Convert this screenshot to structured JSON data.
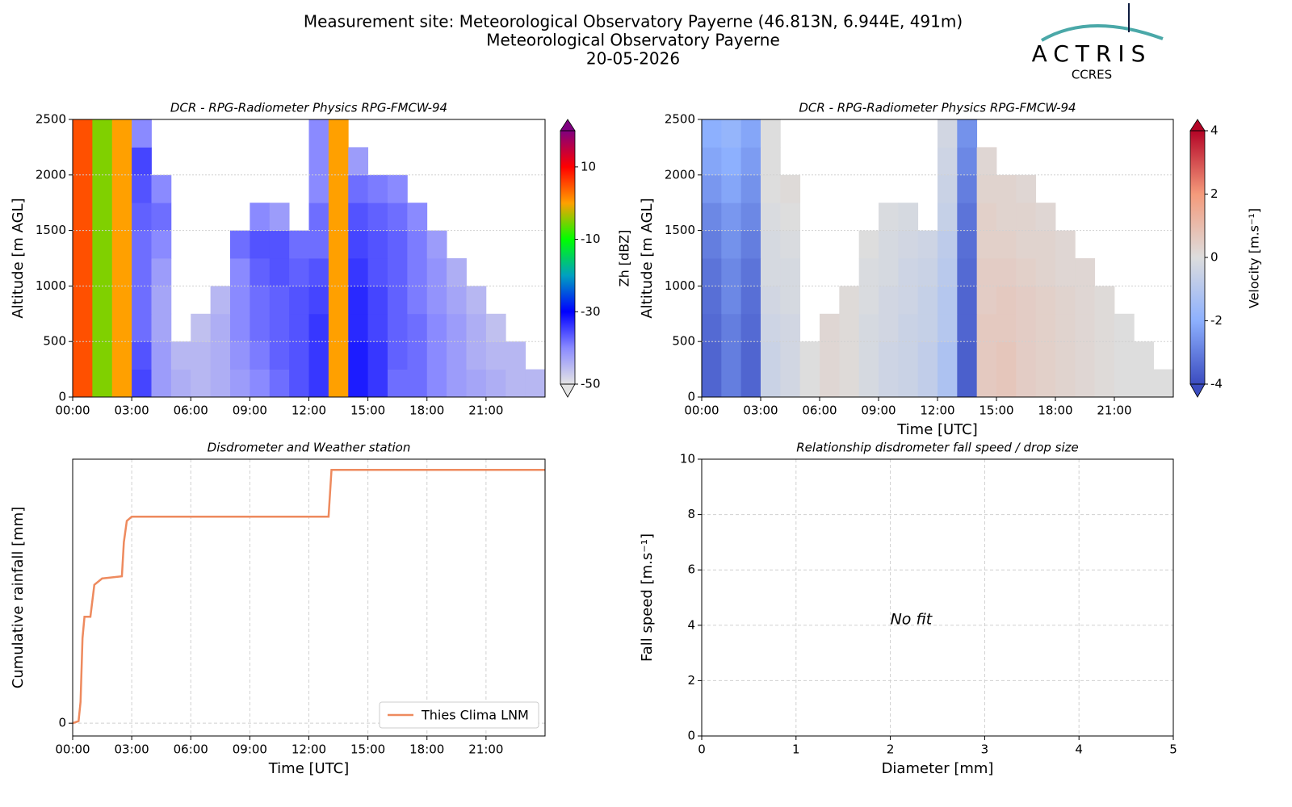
{
  "header": {
    "title": "Measurement site: Meteorological Observatory Payerne (46.813N, 6.944E, 491m)",
    "subtitle": "Meteorological Observatory Payerne",
    "date": "20-05-2026",
    "logo": "ACTRIS",
    "logo_sub": "CCRES"
  },
  "chart_data": [
    {
      "type": "heatmap",
      "title": "DCR - RPG-Radiometer Physics RPG-FMCW-94",
      "ylabel": "Altitude [m AGL]",
      "x_edges": [
        0,
        1,
        2,
        3,
        4,
        5,
        6,
        7,
        8,
        9,
        10,
        11,
        12,
        13,
        14,
        15,
        16,
        17,
        18,
        19,
        20,
        21,
        22,
        23,
        24
      ],
      "y_edges": [
        0,
        250,
        500,
        750,
        1000,
        1250,
        1500,
        1750,
        2000,
        2250,
        2500
      ],
      "z": [
        [
          5,
          -5,
          0,
          -35,
          -42,
          -44,
          -45,
          -44,
          -42,
          -40,
          -38,
          -36,
          -34,
          0,
          -32,
          -34,
          -38,
          -38,
          -40,
          -42,
          -43,
          -44,
          -45,
          -45
        ],
        [
          5,
          -5,
          0,
          -36,
          -42,
          -45,
          -45,
          -44,
          -41,
          -39,
          -37,
          -36,
          -34,
          0,
          -32,
          -34,
          -37,
          -38,
          -40,
          -42,
          -44,
          -45,
          -45,
          null
        ],
        [
          5,
          -5,
          0,
          -38,
          -43,
          null,
          -46,
          -44,
          -40,
          -38,
          -37,
          -36,
          -34,
          0,
          -33,
          -35,
          -37,
          -38,
          -40,
          -42,
          -44,
          -46,
          null,
          null
        ],
        [
          5,
          -5,
          0,
          -38,
          -43,
          null,
          null,
          -45,
          -40,
          -38,
          -37,
          -36,
          -35,
          0,
          -33,
          -35,
          -37,
          -39,
          -41,
          -43,
          -45,
          null,
          null,
          null
        ],
        [
          5,
          -5,
          0,
          -38,
          -42,
          null,
          null,
          null,
          -40,
          -37,
          -36,
          -37,
          -36,
          0,
          -34,
          -36,
          -37,
          -39,
          -41,
          -44,
          null,
          null,
          null,
          null
        ],
        [
          5,
          -5,
          0,
          -38,
          -40,
          null,
          null,
          null,
          -38,
          -36,
          -36,
          -38,
          -38,
          0,
          -35,
          -36,
          -37,
          -39,
          -42,
          null,
          null,
          null,
          null,
          null
        ],
        [
          5,
          -5,
          0,
          -37,
          -38,
          null,
          null,
          null,
          null,
          -40,
          -42,
          null,
          -38,
          0,
          -36,
          -37,
          -38,
          -40,
          null,
          null,
          null,
          null,
          null,
          null
        ],
        [
          5,
          -5,
          0,
          -36,
          -40,
          null,
          null,
          null,
          null,
          null,
          null,
          null,
          -40,
          0,
          -38,
          -39,
          -40,
          null,
          null,
          null,
          null,
          null,
          null,
          null
        ],
        [
          5,
          -5,
          0,
          -35,
          null,
          null,
          null,
          null,
          null,
          null,
          null,
          null,
          -40,
          0,
          -42,
          null,
          null,
          null,
          null,
          null,
          null,
          null,
          null,
          null
        ],
        [
          5,
          -5,
          0,
          -40,
          null,
          null,
          null,
          null,
          null,
          null,
          null,
          null,
          -40,
          0,
          null,
          null,
          null,
          null,
          null,
          null,
          null,
          null,
          null,
          null
        ]
      ],
      "xlim": [
        0,
        24
      ],
      "xticks": [
        {
          "value": 0,
          "label": "00:00"
        },
        {
          "value": 3,
          "label": "03:00"
        },
        {
          "value": 6,
          "label": "06:00"
        },
        {
          "value": 9,
          "label": "09:00"
        },
        {
          "value": 12,
          "label": "12:00"
        },
        {
          "value": 15,
          "label": "15:00"
        },
        {
          "value": 18,
          "label": "18:00"
        },
        {
          "value": 21,
          "label": "21:00"
        }
      ],
      "ylim": [
        0,
        2500
      ],
      "yticks": [
        0,
        500,
        1000,
        1500,
        2000,
        2500
      ],
      "grid": true,
      "colorbar": {
        "label": "Zh [dBZ]",
        "lim": [
          -50,
          20
        ],
        "ticks": [
          10,
          -10,
          -30,
          -50
        ],
        "colors": [
          "#e4e4e4",
          "#8a8aff",
          "#0000ff",
          "#00a0c0",
          "#00ff00",
          "#ffa000",
          "#ff0000",
          "#800080"
        ]
      }
    },
    {
      "type": "heatmap",
      "title": "DCR - RPG-Radiometer Physics RPG-FMCW-94",
      "ylabel": "Altitude [m AGL]",
      "xlabel": "Time [UTC]",
      "x_edges": [
        0,
        1,
        2,
        3,
        4,
        5,
        6,
        7,
        8,
        9,
        10,
        11,
        12,
        13,
        14,
        15,
        16,
        17,
        18,
        19,
        20,
        21,
        22,
        23,
        24
      ],
      "y_edges": [
        0,
        250,
        500,
        750,
        1000,
        1250,
        1500,
        1750,
        2000,
        2250,
        2500
      ],
      "z": [
        [
          -3.5,
          -3,
          -3.5,
          -0.5,
          -0.3,
          0,
          0.2,
          0.1,
          -0.2,
          -0.4,
          -0.5,
          -0.7,
          -1.2,
          -3.6,
          0.6,
          0.7,
          0.5,
          0.4,
          0.3,
          0.2,
          0.1,
          0,
          0,
          0
        ],
        [
          -3.5,
          -3,
          -3.5,
          -0.5,
          -0.3,
          0,
          0.2,
          0.1,
          -0.2,
          -0.4,
          -0.5,
          -0.7,
          -1.2,
          -3.6,
          0.6,
          0.7,
          0.5,
          0.4,
          0.3,
          0.2,
          0.1,
          0,
          0,
          null
        ],
        [
          -3.4,
          -3,
          -3.4,
          -0.4,
          -0.3,
          null,
          0.2,
          0.1,
          -0.2,
          -0.3,
          -0.5,
          -0.6,
          -1,
          -3.5,
          0.6,
          0.6,
          0.5,
          0.4,
          0.3,
          0.2,
          0.1,
          0,
          null,
          null
        ],
        [
          -3.3,
          -2.8,
          -3.3,
          -0.3,
          -0.2,
          null,
          null,
          0.1,
          -0.1,
          -0.3,
          -0.4,
          -0.6,
          -1,
          -3.5,
          0.5,
          0.6,
          0.5,
          0.4,
          0.3,
          0.2,
          0.1,
          null,
          null,
          null
        ],
        [
          -3.2,
          -2.8,
          -3.2,
          -0.2,
          -0.2,
          null,
          null,
          null,
          -0.1,
          -0.2,
          -0.4,
          -0.5,
          -0.9,
          -3.4,
          0.5,
          0.5,
          0.4,
          0.3,
          0.2,
          0.2,
          null,
          null,
          null,
          null
        ],
        [
          -3,
          -2.6,
          -3,
          -0.2,
          -0.1,
          null,
          null,
          null,
          0,
          -0.2,
          -0.3,
          -0.4,
          -0.8,
          -3.3,
          0.4,
          0.4,
          0.3,
          0.3,
          0.2,
          null,
          null,
          null,
          null,
          null
        ],
        [
          -2.8,
          -2.5,
          -2.8,
          -0.1,
          0,
          null,
          null,
          null,
          null,
          -0.1,
          -0.2,
          null,
          -0.6,
          -3.2,
          0.4,
          0.3,
          0.3,
          0.2,
          null,
          null,
          null,
          null,
          null,
          null
        ],
        [
          -2.5,
          -2.2,
          -2.6,
          0,
          0.1,
          null,
          null,
          null,
          null,
          null,
          null,
          null,
          -0.5,
          -3,
          0.3,
          0.3,
          0.2,
          null,
          null,
          null,
          null,
          null,
          null,
          null
        ],
        [
          -2.2,
          -2,
          -2.4,
          0,
          null,
          null,
          null,
          null,
          null,
          null,
          null,
          null,
          -0.4,
          -2.8,
          0.2,
          null,
          null,
          null,
          null,
          null,
          null,
          null,
          null,
          null
        ],
        [
          -2,
          -1.8,
          -2.2,
          0,
          null,
          null,
          null,
          null,
          null,
          null,
          null,
          null,
          -0.3,
          -2.6,
          null,
          null,
          null,
          null,
          null,
          null,
          null,
          null,
          null,
          null
        ]
      ],
      "xlim": [
        0,
        24
      ],
      "xticks": [
        {
          "value": 0,
          "label": "00:00"
        },
        {
          "value": 3,
          "label": "03:00"
        },
        {
          "value": 6,
          "label": "06:00"
        },
        {
          "value": 9,
          "label": "09:00"
        },
        {
          "value": 12,
          "label": "12:00"
        },
        {
          "value": 15,
          "label": "15:00"
        },
        {
          "value": 18,
          "label": "18:00"
        },
        {
          "value": 21,
          "label": "21:00"
        }
      ],
      "ylim": [
        0,
        2500
      ],
      "yticks": [
        0,
        500,
        1000,
        1500,
        2000,
        2500
      ],
      "grid": true,
      "colorbar": {
        "label": "Velocity [m.s⁻¹]",
        "lim": [
          -4,
          4
        ],
        "ticks": [
          4,
          2,
          0,
          -2,
          -4
        ],
        "colors": [
          "#3b4cc0",
          "#8db0fe",
          "#dddddd",
          "#f49a7b",
          "#b40426"
        ]
      }
    },
    {
      "type": "line",
      "title": "Disdrometer and Weather station",
      "xlabel": "Time [UTC]",
      "ylabel": "Cumulative rainfall [mm]",
      "x": [
        0,
        0.3,
        0.4,
        0.5,
        0.6,
        0.9,
        1.1,
        1.5,
        2.5,
        2.6,
        2.75,
        3,
        13,
        13.15,
        24
      ],
      "series": [
        {
          "name": "Thies Clima LNM",
          "color": "#ee8a5e",
          "values": [
            0,
            0.01,
            0.1,
            0.4,
            0.5,
            0.5,
            0.65,
            0.68,
            0.69,
            0.85,
            0.95,
            0.97,
            0.97,
            1.19,
            1.19
          ]
        }
      ],
      "xlim": [
        0,
        24
      ],
      "xticks": [
        {
          "value": 0,
          "label": "00:00"
        },
        {
          "value": 3,
          "label": "03:00"
        },
        {
          "value": 6,
          "label": "06:00"
        },
        {
          "value": 9,
          "label": "09:00"
        },
        {
          "value": 12,
          "label": "12:00"
        },
        {
          "value": 15,
          "label": "15:00"
        },
        {
          "value": 18,
          "label": "18:00"
        },
        {
          "value": 21,
          "label": "21:00"
        }
      ],
      "ylim": [
        -0.06,
        1.24
      ],
      "yticks": [
        0
      ],
      "grid": true,
      "legend": "lower right"
    },
    {
      "type": "scatter",
      "title": "Relationship disdrometer fall speed / drop size",
      "xlabel": "Diameter [mm]",
      "ylabel": "Fall speed [m.s⁻¹]",
      "annotation": "No fit",
      "xlim": [
        0,
        5
      ],
      "xticks": [
        0,
        1,
        2,
        3,
        4,
        5
      ],
      "ylim": [
        0,
        10
      ],
      "yticks": [
        0,
        2,
        4,
        6,
        8,
        10
      ],
      "grid": true
    }
  ]
}
